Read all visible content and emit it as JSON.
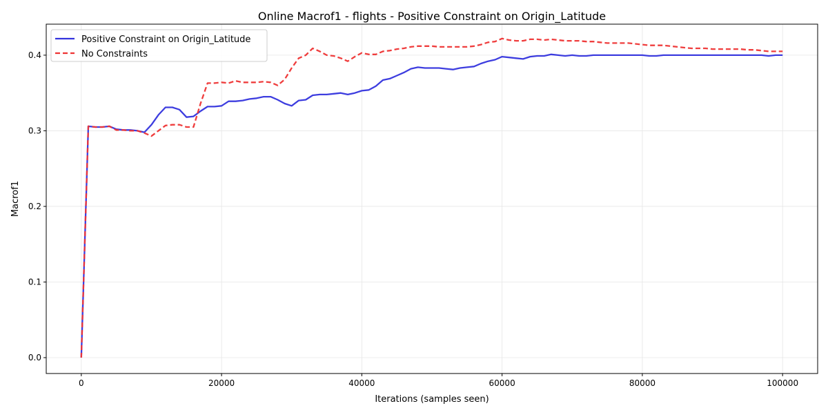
{
  "chart_data": {
    "type": "line",
    "title": "Online Macrof1 - flights - Positive Constraint on Origin_Latitude",
    "xlabel": "Iterations (samples seen)",
    "ylabel": "Macrof1",
    "xlim": [
      -5000,
      105000
    ],
    "ylim": [
      -0.021,
      0.441
    ],
    "x_ticks": [
      0,
      20000,
      40000,
      60000,
      80000,
      100000
    ],
    "x_tick_labels": [
      "0",
      "20000",
      "40000",
      "60000",
      "80000",
      "100000"
    ],
    "y_ticks": [
      0.0,
      0.1,
      0.2,
      0.3,
      0.4
    ],
    "y_tick_labels": [
      "0.0",
      "0.1",
      "0.2",
      "0.3",
      "0.4"
    ],
    "grid": true,
    "legend_position": "top-left",
    "x": [
      0,
      1000,
      2000,
      3000,
      4000,
      5000,
      6000,
      7000,
      8000,
      9000,
      10000,
      11000,
      12000,
      13000,
      14000,
      15000,
      16000,
      17000,
      18000,
      19000,
      20000,
      21000,
      22000,
      23000,
      24000,
      25000,
      26000,
      27000,
      28000,
      29000,
      30000,
      31000,
      32000,
      33000,
      34000,
      35000,
      36000,
      37000,
      38000,
      39000,
      40000,
      41000,
      42000,
      43000,
      44000,
      45000,
      46000,
      47000,
      48000,
      49000,
      50000,
      51000,
      52000,
      53000,
      54000,
      55000,
      56000,
      57000,
      58000,
      59000,
      60000,
      61000,
      62000,
      63000,
      64000,
      65000,
      66000,
      67000,
      68000,
      69000,
      70000,
      71000,
      72000,
      73000,
      74000,
      75000,
      76000,
      77000,
      78000,
      79000,
      80000,
      81000,
      82000,
      83000,
      84000,
      85000,
      86000,
      87000,
      88000,
      89000,
      90000,
      91000,
      92000,
      93000,
      94000,
      95000,
      96000,
      97000,
      98000,
      99000,
      100000
    ],
    "series": [
      {
        "name": "Positive Constraint on Origin_Latitude",
        "color": "#3333dd",
        "style": "solid",
        "values": [
          0.0,
          0.306,
          0.305,
          0.305,
          0.306,
          0.302,
          0.301,
          0.301,
          0.3,
          0.298,
          0.308,
          0.321,
          0.331,
          0.331,
          0.328,
          0.318,
          0.319,
          0.326,
          0.332,
          0.332,
          0.333,
          0.339,
          0.339,
          0.34,
          0.342,
          0.343,
          0.345,
          0.345,
          0.341,
          0.336,
          0.333,
          0.34,
          0.341,
          0.347,
          0.348,
          0.348,
          0.349,
          0.35,
          0.348,
          0.35,
          0.353,
          0.354,
          0.359,
          0.367,
          0.369,
          0.373,
          0.377,
          0.382,
          0.384,
          0.383,
          0.383,
          0.383,
          0.382,
          0.381,
          0.383,
          0.384,
          0.385,
          0.389,
          0.392,
          0.394,
          0.398,
          0.397,
          0.396,
          0.395,
          0.398,
          0.399,
          0.399,
          0.401,
          0.4,
          0.399,
          0.4,
          0.399,
          0.399,
          0.4,
          0.4,
          0.4,
          0.4,
          0.4,
          0.4,
          0.4,
          0.4,
          0.399,
          0.399,
          0.4,
          0.4,
          0.4,
          0.4,
          0.4,
          0.4,
          0.4,
          0.4,
          0.4,
          0.4,
          0.4,
          0.4,
          0.4,
          0.4,
          0.4,
          0.399,
          0.4,
          0.4
        ]
      },
      {
        "name": "No Constraints",
        "color": "#ee3333",
        "style": "dashed",
        "values": [
          0.0,
          0.306,
          0.305,
          0.305,
          0.306,
          0.301,
          0.301,
          0.3,
          0.3,
          0.297,
          0.293,
          0.3,
          0.307,
          0.308,
          0.308,
          0.305,
          0.305,
          0.336,
          0.363,
          0.363,
          0.364,
          0.363,
          0.366,
          0.364,
          0.364,
          0.364,
          0.365,
          0.364,
          0.36,
          0.368,
          0.383,
          0.396,
          0.4,
          0.409,
          0.405,
          0.4,
          0.399,
          0.396,
          0.392,
          0.398,
          0.403,
          0.401,
          0.401,
          0.405,
          0.406,
          0.408,
          0.409,
          0.411,
          0.412,
          0.412,
          0.412,
          0.411,
          0.411,
          0.411,
          0.411,
          0.411,
          0.412,
          0.414,
          0.417,
          0.418,
          0.422,
          0.42,
          0.419,
          0.419,
          0.421,
          0.421,
          0.42,
          0.421,
          0.42,
          0.419,
          0.419,
          0.419,
          0.418,
          0.418,
          0.417,
          0.416,
          0.416,
          0.416,
          0.416,
          0.415,
          0.414,
          0.413,
          0.413,
          0.413,
          0.412,
          0.411,
          0.41,
          0.409,
          0.409,
          0.409,
          0.408,
          0.408,
          0.408,
          0.408,
          0.408,
          0.407,
          0.407,
          0.406,
          0.405,
          0.405,
          0.405
        ]
      }
    ]
  }
}
